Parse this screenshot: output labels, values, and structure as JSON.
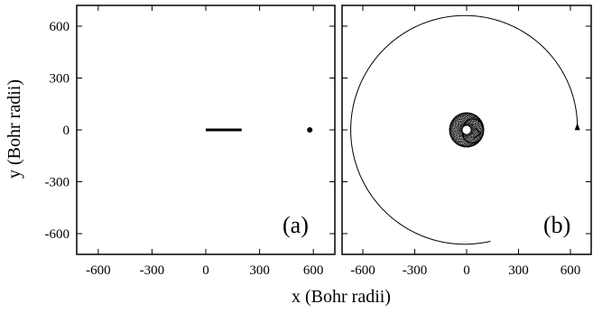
{
  "chart_data": [
    {
      "type": "scatter",
      "panel_label": "(a)",
      "xlabel": "x (Bohr radii)",
      "ylabel": "y (Bohr radii)",
      "xlim": [
        -720,
        720
      ],
      "ylim": [
        -720,
        720
      ],
      "xticks": [
        -600,
        -300,
        0,
        300,
        600
      ],
      "yticks": [
        -600,
        -300,
        0,
        300,
        600
      ],
      "grid": false,
      "series": [
        {
          "kind": "segment",
          "x": [
            0,
            200
          ],
          "y": [
            0,
            0
          ]
        },
        {
          "kind": "point",
          "x": [
            580
          ],
          "y": [
            0
          ]
        }
      ]
    },
    {
      "type": "line",
      "panel_label": "(b)",
      "xlabel": "x (Bohr radii)",
      "xlim": [
        -720,
        720
      ],
      "ylim": [
        -720,
        720
      ],
      "xticks": [
        -600,
        -300,
        0,
        300,
        600
      ],
      "yticks": [
        -600,
        -300,
        0,
        300,
        600
      ],
      "grid": false,
      "series": [
        {
          "kind": "outer-spiral",
          "start": [
            640,
            0
          ],
          "end": [
            140,
            -650
          ]
        },
        {
          "kind": "rosette",
          "center": [
            0,
            0
          ],
          "radius_range": [
            10,
            100
          ]
        }
      ]
    }
  ]
}
